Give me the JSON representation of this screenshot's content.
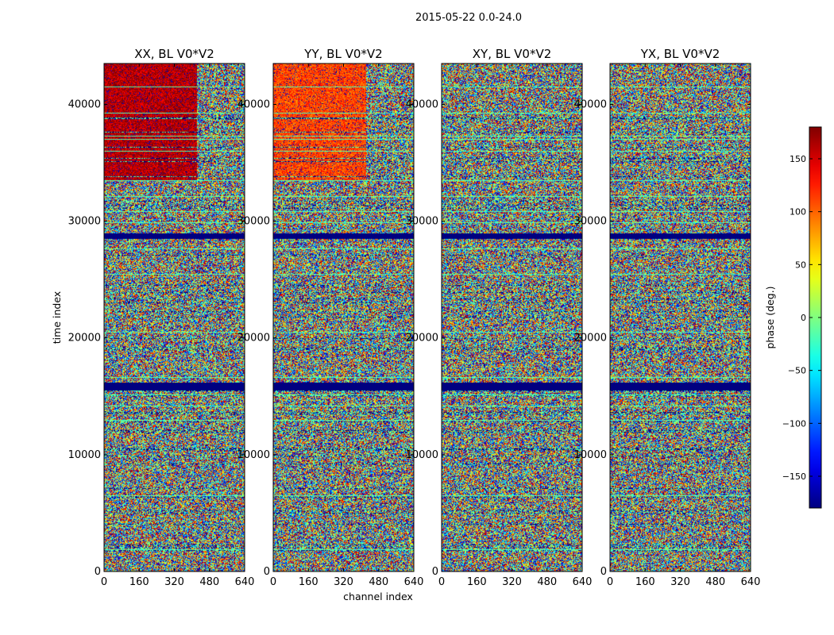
{
  "chart_data": {
    "type": "heatmap",
    "suptitle": "2015-05-22 0.0-24.0",
    "panels": [
      {
        "title": "XX, BL V0*V2",
        "pol": "XX"
      },
      {
        "title": "YY, BL V0*V2",
        "pol": "YY"
      },
      {
        "title": "XY, BL V0*V2",
        "pol": "XY"
      },
      {
        "title": "YX, BL V0*V2",
        "pol": "YX"
      }
    ],
    "xlabel": "channel index",
    "ylabel": "time index",
    "xlim": [
      0,
      640
    ],
    "ylim": [
      0,
      43500
    ],
    "xticks": [
      0,
      160,
      320,
      480,
      640
    ],
    "yticks": [
      0,
      10000,
      20000,
      30000,
      40000
    ],
    "colorbar": {
      "label": "phase (deg.)",
      "range": [
        -180,
        180
      ],
      "ticks": [
        150,
        100,
        50,
        0,
        -50,
        -100,
        -150
      ],
      "tick_labels": [
        "150",
        "100",
        "50",
        "0",
        "−50",
        "−100",
        "−150"
      ],
      "colormap": "jet"
    },
    "features": {
      "flagged_time_ranges": [
        [
          15500,
          16200
        ],
        [
          28500,
          29000
        ]
      ],
      "coherent_phase_time_range": [
        33500,
        43500
      ],
      "coherent_phase_pols": [
        "XX",
        "YY"
      ],
      "XX_coherent_phase_deg": 160,
      "YY_coherent_phase_deg": 110
    }
  }
}
